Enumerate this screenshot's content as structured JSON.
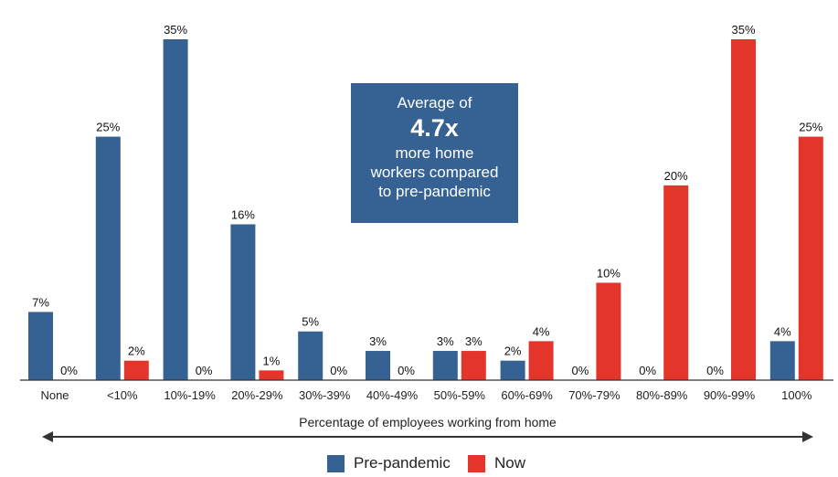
{
  "chart_data": {
    "type": "bar",
    "xlabel": "Percentage of employees working from home",
    "categories": [
      "None",
      "<10%",
      "10%-19%",
      "20%-29%",
      "30%-39%",
      "40%-49%",
      "50%-59%",
      "60%-69%",
      "70%-79%",
      "80%-89%",
      "90%-99%",
      "100%"
    ],
    "series": [
      {
        "name": "Pre-pandemic",
        "color": "#356293",
        "values": [
          7,
          25,
          35,
          16,
          5,
          3,
          3,
          2,
          0,
          0,
          0,
          4
        ],
        "labels": [
          "7%",
          "25%",
          "35%",
          "16%",
          "5%",
          "3%",
          "3%",
          "2%",
          "0%",
          "0%",
          "0%",
          "4%"
        ]
      },
      {
        "name": "Now",
        "color": "#e4352a",
        "values": [
          0,
          2,
          0,
          1,
          0,
          0,
          3,
          4,
          10,
          20,
          35,
          25
        ],
        "labels": [
          "0%",
          "2%",
          "0%",
          "1%",
          "0%",
          "0%",
          "3%",
          "4%",
          "10%",
          "20%",
          "35%",
          "25%"
        ]
      }
    ],
    "ylim": [
      0,
      35
    ],
    "grid": false,
    "legend": "bottom-center"
  },
  "callout": {
    "line1": "Average of",
    "highlight": "4.7x",
    "line2": "more home",
    "line3": "workers compared",
    "line4": "to pre-pandemic"
  }
}
